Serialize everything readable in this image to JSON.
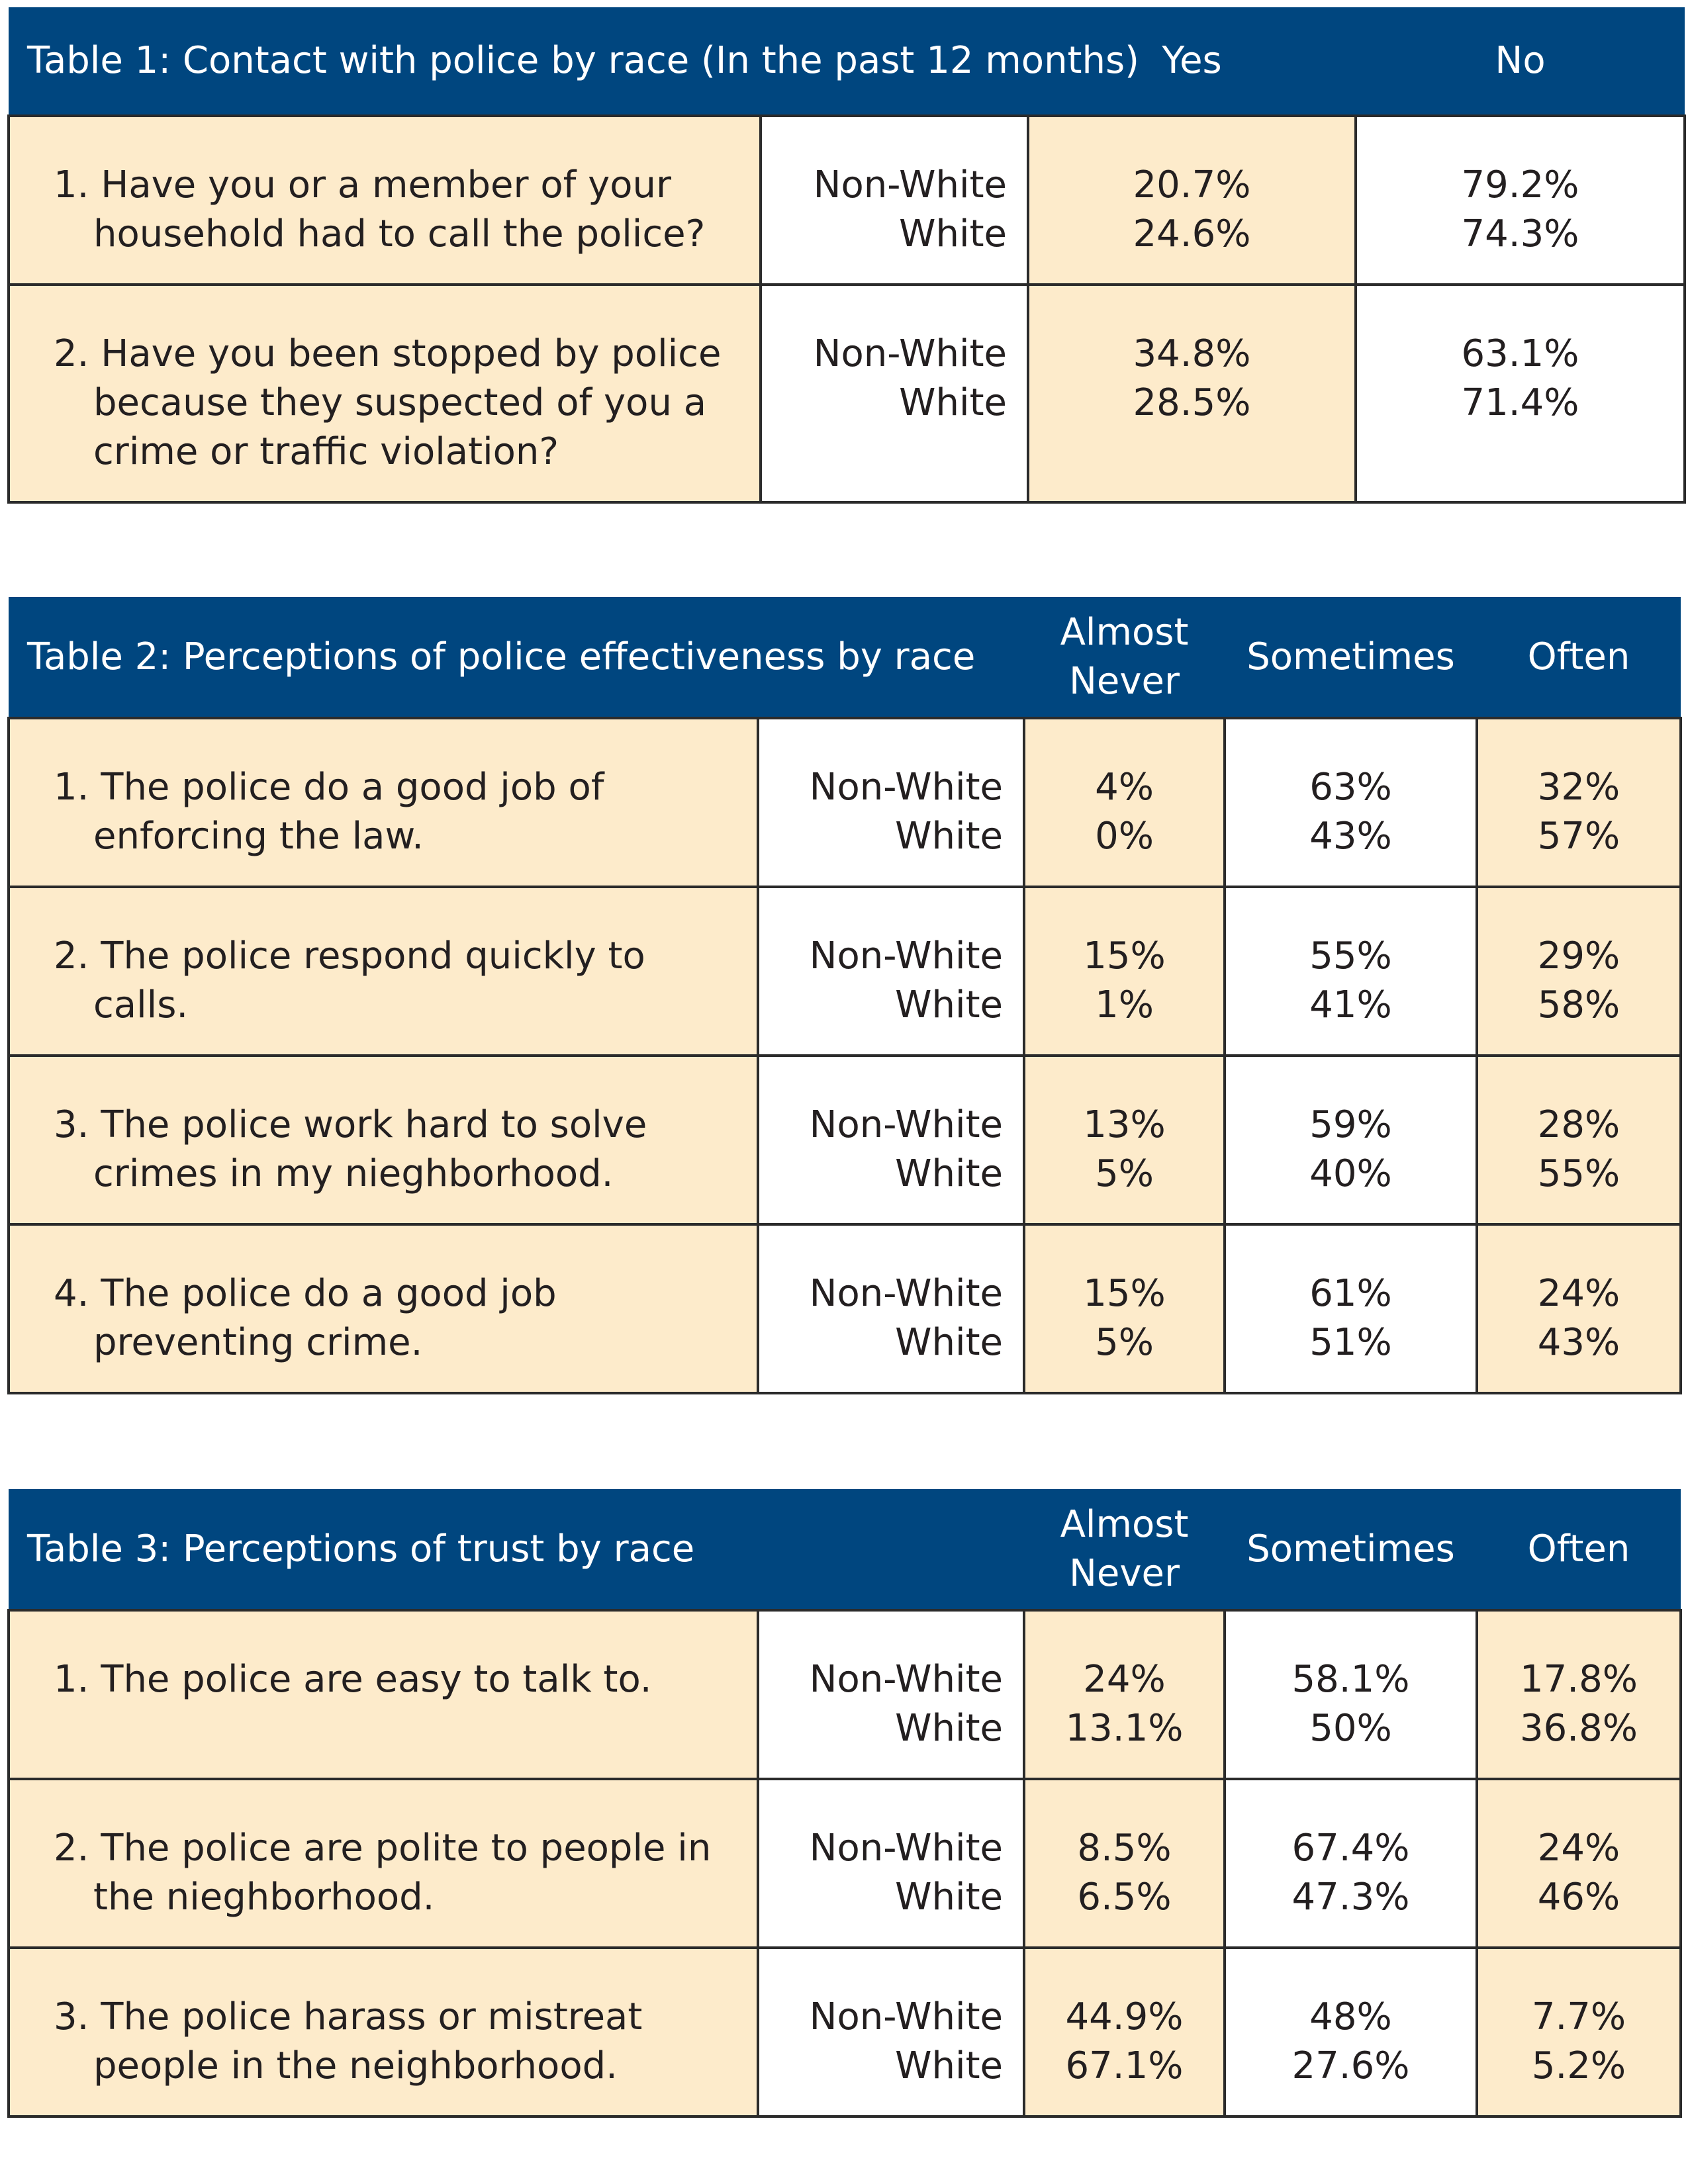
{
  "tables": [
    {
      "title": "Table 1: Contact with police by race (In the past 12 months)",
      "columns": [
        "Yes",
        "No"
      ],
      "rows": [
        {
          "question": "1. Have you or a member of your household had to call the police?",
          "groups": [
            "Non-White",
            "White"
          ],
          "cells": [
            [
              "20.7%",
              "24.6%"
            ],
            [
              "79.2%",
              "74.3%"
            ]
          ]
        },
        {
          "question": "2. Have you been stopped by police because they suspected of you a crime or traffic violation?",
          "groups": [
            "Non-White",
            "White"
          ],
          "cells": [
            [
              "34.8%",
              "28.5%"
            ],
            [
              "63.1%",
              "71.4%"
            ]
          ]
        }
      ]
    },
    {
      "title": "Table 2: Perceptions of police effectiveness by race",
      "columns": [
        "Almost Never",
        "Sometimes",
        "Often"
      ],
      "rows": [
        {
          "question": "1. The police do a good job of enforcing the law.",
          "groups": [
            "Non-White",
            "White"
          ],
          "cells": [
            [
              "4%",
              "0%"
            ],
            [
              "63%",
              "43%"
            ],
            [
              "32%",
              "57%"
            ]
          ]
        },
        {
          "question": "2. The police respond quickly to calls.",
          "groups": [
            "Non-White",
            "White"
          ],
          "cells": [
            [
              "15%",
              "1%"
            ],
            [
              "55%",
              "41%"
            ],
            [
              "29%",
              "58%"
            ]
          ]
        },
        {
          "question": "3. The police work hard to solve crimes in my nieghborhood.",
          "groups": [
            "Non-White",
            "White"
          ],
          "cells": [
            [
              "13%",
              "5%"
            ],
            [
              "59%",
              "40%"
            ],
            [
              "28%",
              "55%"
            ]
          ]
        },
        {
          "question": "4. The police do a good job preventing crime.",
          "groups": [
            "Non-White",
            "White"
          ],
          "cells": [
            [
              "15%",
              "5%"
            ],
            [
              "61%",
              "51%"
            ],
            [
              "24%",
              "43%"
            ]
          ]
        }
      ]
    },
    {
      "title": "Table 3: Perceptions of trust by race",
      "columns": [
        "Almost Never",
        "Sometimes",
        "Often"
      ],
      "rows": [
        {
          "question": "1. The police are easy to talk to.",
          "groups": [
            "Non-White",
            "White"
          ],
          "cells": [
            [
              "24%",
              "13.1%"
            ],
            [
              "58.1%",
              "50%"
            ],
            [
              "17.8%",
              "36.8%"
            ]
          ]
        },
        {
          "question": "2. The police are polite to people in the nieghborhood.",
          "groups": [
            "Non-White",
            "White"
          ],
          "cells": [
            [
              "8.5%",
              "6.5%"
            ],
            [
              "67.4%",
              "47.3%"
            ],
            [
              "24%",
              "46%"
            ]
          ]
        },
        {
          "question": "3. The police harass or mistreat people in the neighborhood.",
          "groups": [
            "Non-White",
            "White"
          ],
          "cells": [
            [
              "44.9%",
              "67.1%"
            ],
            [
              "48%",
              "27.6%"
            ],
            [
              "7.7%",
              "5.2%"
            ]
          ]
        }
      ]
    }
  ]
}
